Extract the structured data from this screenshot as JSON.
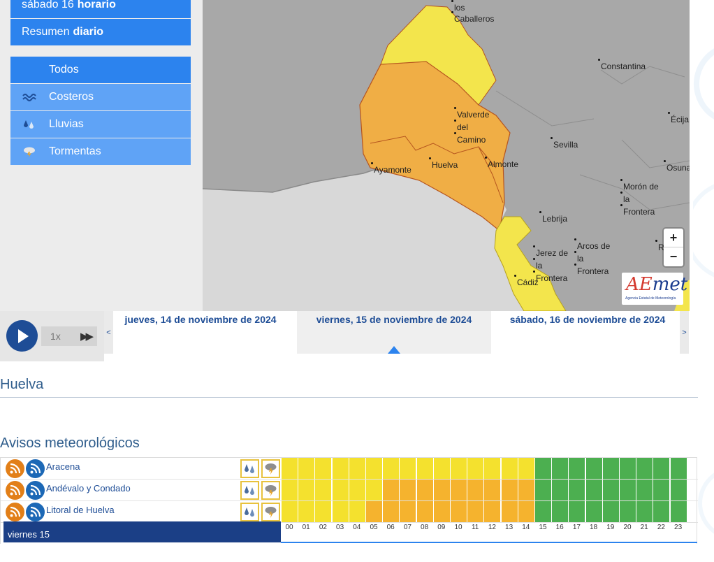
{
  "menu": {
    "prev_top": {
      "pre": "sábado 16",
      "bold": "horario"
    },
    "daily": {
      "pre": "Resumen",
      "bold": "diario"
    },
    "filters": [
      {
        "label": "Todos",
        "icon": "none"
      },
      {
        "label": "Costeros",
        "icon": "waves-icon"
      },
      {
        "label": "Lluvias",
        "icon": "rain-icon"
      },
      {
        "label": "Tormentas",
        "icon": "storm-icon"
      }
    ]
  },
  "map": {
    "cities": [
      "los",
      "Caballeros",
      "Constantina",
      "Écija",
      "Valverde",
      "del",
      "Camino",
      "Sevilla",
      "Ayamonte",
      "Huelva",
      "Almonte",
      "Osuna",
      "Morón de",
      "la",
      "Frontera",
      "Lebrija",
      "Jerez de",
      "la",
      "Frontera",
      "Arcos de",
      "la",
      "Frontera",
      "Cádiz",
      "R"
    ],
    "zoom_in": "+",
    "zoom_out": "−",
    "logo": {
      "pre": "AE",
      "post": "met",
      "sub": "Agencia Estatal de Meteorología"
    },
    "colors": {
      "orange": "#f0ae45",
      "yellow": "#f3e54c",
      "sea": "#d8d8d8",
      "land": "#a9a9a9"
    }
  },
  "timeline": {
    "speed": "1x",
    "fast_forward": "▶▶",
    "prev_arrow": "<",
    "next_arrow": ">",
    "days": [
      "jueves, 14 de noviembre de 2024",
      "viernes, 15 de noviembre de 2024",
      "sábado, 16 de noviembre de 2024"
    ],
    "selected_day": 1
  },
  "area_title": "Huelva",
  "warnings_title": "Avisos meteorológicos",
  "warnings": {
    "rows": [
      {
        "zone": "Aracena",
        "levels": [
          "y",
          "y",
          "y",
          "y",
          "y",
          "y",
          "y",
          "y",
          "y",
          "y",
          "y",
          "y",
          "y",
          "y",
          "y",
          "g",
          "g",
          "g",
          "g",
          "g",
          "g",
          "g",
          "g",
          "g"
        ]
      },
      {
        "zone": "Andévalo y Condado",
        "levels": [
          "y",
          "y",
          "y",
          "y",
          "y",
          "y",
          "o",
          "o",
          "o",
          "o",
          "o",
          "o",
          "o",
          "o",
          "o",
          "g",
          "g",
          "g",
          "g",
          "g",
          "g",
          "g",
          "g",
          "g"
        ]
      },
      {
        "zone": "Litoral de Huelva",
        "levels": [
          "y",
          "y",
          "y",
          "y",
          "y",
          "o",
          "o",
          "o",
          "o",
          "o",
          "o",
          "o",
          "o",
          "o",
          "o",
          "g",
          "g",
          "g",
          "g",
          "g",
          "g",
          "g",
          "g",
          "g"
        ]
      }
    ],
    "level_colors": {
      "y": "#f4e12e",
      "o": "#f5b32e",
      "g": "#4caf50"
    },
    "day_label": "viernes 15",
    "hours": [
      "00",
      "01",
      "02",
      "03",
      "04",
      "05",
      "06",
      "07",
      "08",
      "09",
      "10",
      "11",
      "12",
      "13",
      "14",
      "15",
      "16",
      "17",
      "18",
      "19",
      "20",
      "21",
      "22",
      "23"
    ]
  }
}
